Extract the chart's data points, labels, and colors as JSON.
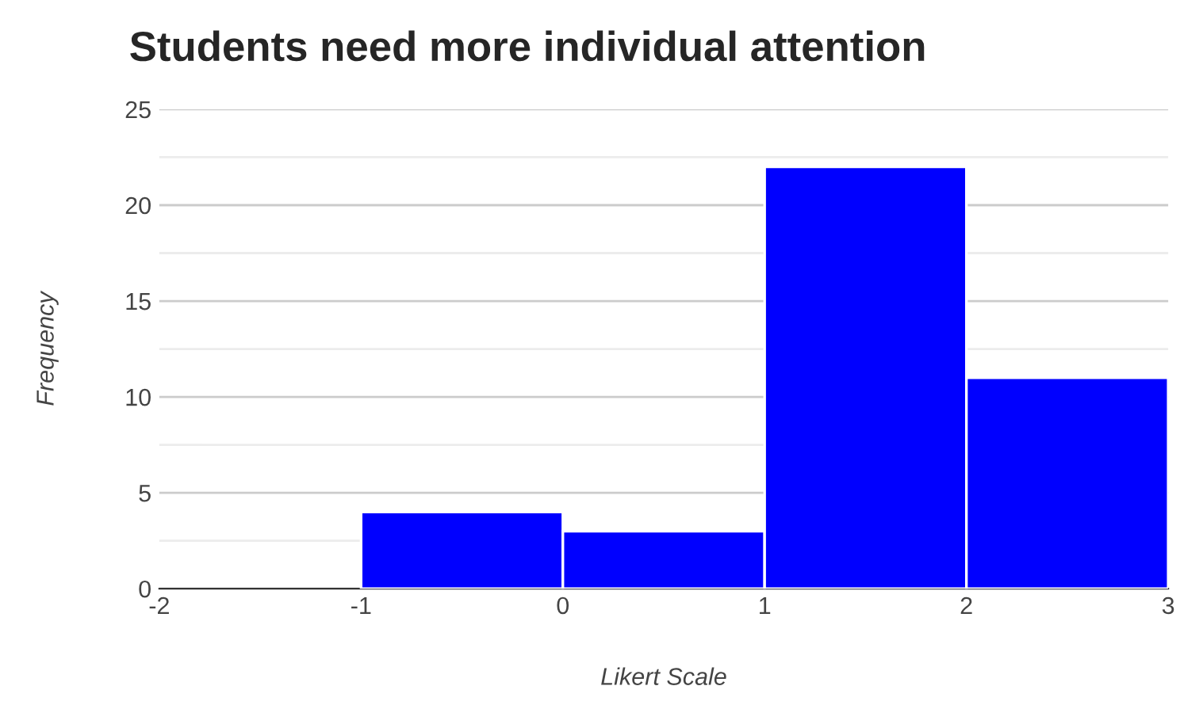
{
  "chart_data": {
    "type": "histogram",
    "title": "Students need more individual attention",
    "xlabel": "Likert Scale",
    "ylabel": "Frequency",
    "bins": [
      -2,
      -1,
      0,
      1,
      2,
      3
    ],
    "values": [
      0,
      4,
      3,
      22,
      11
    ],
    "color": "#0000ff",
    "xlim": [
      -2,
      3
    ],
    "xticks": [
      -2,
      -1,
      0,
      1,
      2,
      3
    ],
    "ylim": [
      0,
      25
    ],
    "yticks": [
      0,
      {
        "value": 2.5,
        "label": null
      },
      5,
      {
        "value": 7.5,
        "label": null
      },
      10,
      {
        "value": 12.5,
        "label": null
      },
      15,
      {
        "value": 17.5,
        "label": null
      },
      20,
      {
        "value": 22.5,
        "label": null
      },
      25
    ],
    "grid": "y"
  }
}
